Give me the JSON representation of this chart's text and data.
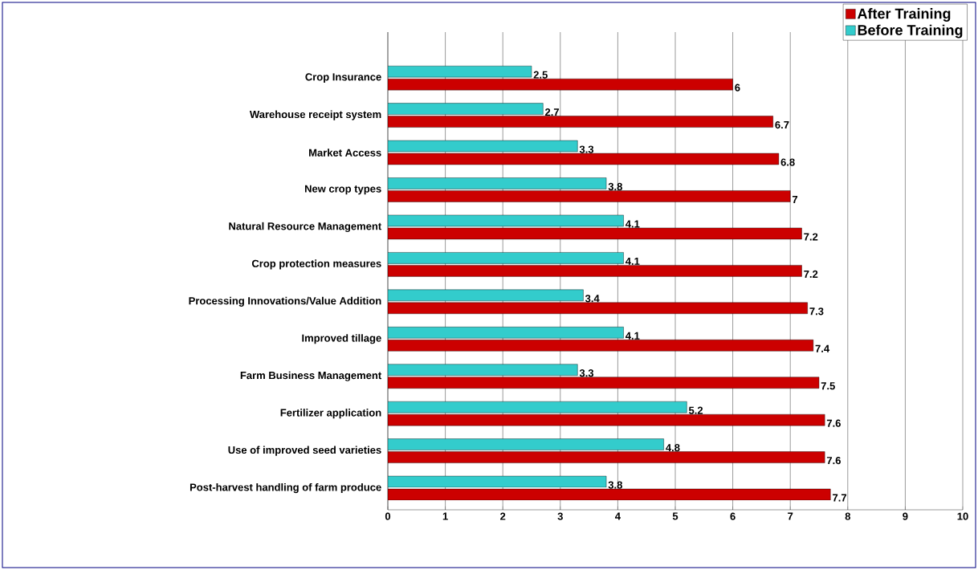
{
  "chart_data": {
    "type": "bar",
    "orientation": "horizontal",
    "categories": [
      "Crop Insurance",
      "Warehouse receipt system",
      "Market Access",
      "New crop types",
      "Natural Resource Management",
      "Crop protection measures",
      "Processing Innovations/Value Addition",
      "Improved tillage",
      "Farm Business Management",
      "Fertilizer application",
      "Use of improved seed varieties",
      "Post-harvest handling of farm produce"
    ],
    "series": [
      {
        "name": "After Training",
        "color": "#cc0000",
        "values": [
          6,
          6.7,
          6.8,
          7,
          7.2,
          7.2,
          7.3,
          7.4,
          7.5,
          7.6,
          7.6,
          7.7
        ]
      },
      {
        "name": "Before Training",
        "color": "#33cccc",
        "values": [
          2.5,
          2.7,
          3.3,
          3.8,
          4.1,
          4.1,
          3.4,
          4.1,
          3.3,
          5.2,
          4.8,
          3.8
        ]
      }
    ],
    "xlim": [
      0,
      10
    ],
    "xticks": [
      0,
      1,
      2,
      3,
      4,
      5,
      6,
      7,
      8,
      9,
      10
    ],
    "grid": "x",
    "legend": "top right",
    "data_labels": true
  }
}
